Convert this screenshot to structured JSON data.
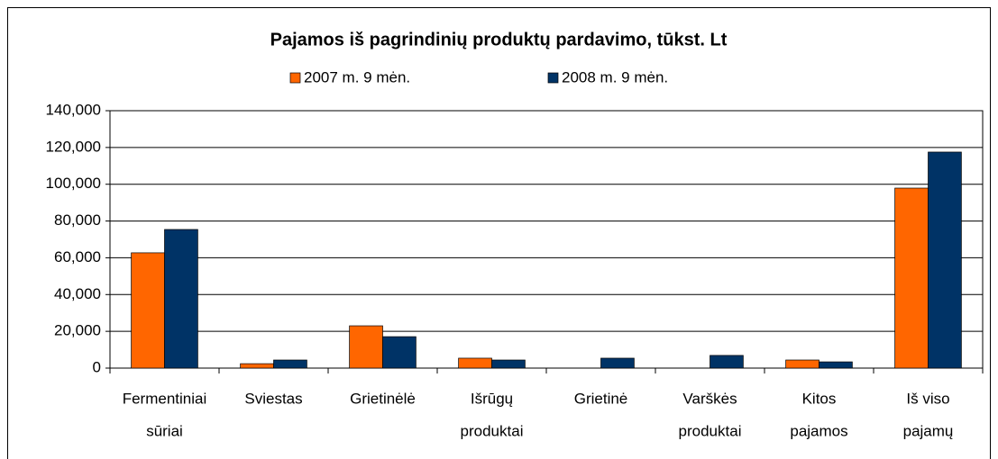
{
  "chart_data": {
    "type": "bar",
    "title": "Pajamos iš pagrindinių produktų pardavimo, tūkst. Lt",
    "categories": [
      [
        "Fermentiniai",
        "sūriai"
      ],
      [
        "Sviestas"
      ],
      [
        "Grietinėlė"
      ],
      [
        "Išrūgų",
        "produktai"
      ],
      [
        "Grietinė"
      ],
      [
        "Varškės",
        "produktai"
      ],
      [
        "Kitos",
        "pajamos"
      ],
      [
        "Iš viso",
        "pajamų"
      ]
    ],
    "series": [
      {
        "name": "2007 m. 9 mėn.",
        "color": "#ff6600",
        "values": [
          62700,
          2400,
          23000,
          5400,
          0,
          0,
          4400,
          97900
        ]
      },
      {
        "name": "2008 m. 9 mėn.",
        "color": "#003366",
        "values": [
          75400,
          4400,
          17100,
          4400,
          5400,
          6900,
          3400,
          117500
        ]
      }
    ],
    "ylim": [
      0,
      140000
    ],
    "yticks": [
      0,
      {
        "value": 20000,
        "label": "20,000"
      },
      {
        "value": 40000,
        "label": "40,000"
      },
      {
        "value": 60000,
        "label": "60,000"
      },
      {
        "value": 80000,
        "label": "80,000"
      },
      {
        "value": 100000,
        "label": "100,000"
      },
      {
        "value": 120000,
        "label": "120,000"
      },
      {
        "value": 140000,
        "label": "140,000"
      }
    ],
    "grid": true,
    "legend": "top"
  }
}
